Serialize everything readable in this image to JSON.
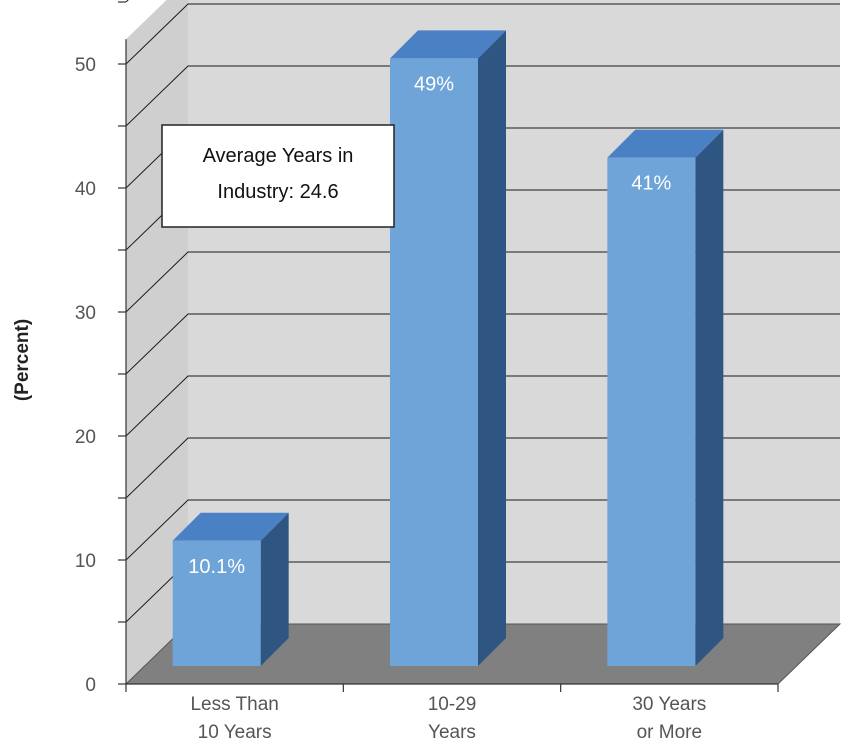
{
  "chart_data": {
    "type": "bar",
    "categories": [
      [
        "Less Than",
        "10 Years"
      ],
      [
        "10-29",
        "Years"
      ],
      [
        "30 Years",
        "or More"
      ]
    ],
    "values": [
      10.1,
      49,
      41
    ],
    "data_labels": [
      "10.1%",
      "49%",
      "41%"
    ],
    "ylabel": "(Percent)",
    "ylim": [
      0,
      50
    ],
    "yticks": [
      "0",
      "10",
      "20",
      "30",
      "40",
      "50"
    ],
    "grid": true,
    "annotation": [
      "Average Years in",
      "Industry: 24.6"
    ],
    "colors": {
      "bar_front": "#6fa4d8",
      "bar_top": "#4a80c4",
      "bar_side": "#2f5582",
      "wall": "#d9d9d9",
      "floor": "#808080",
      "grid": "#1a1a1a"
    }
  }
}
